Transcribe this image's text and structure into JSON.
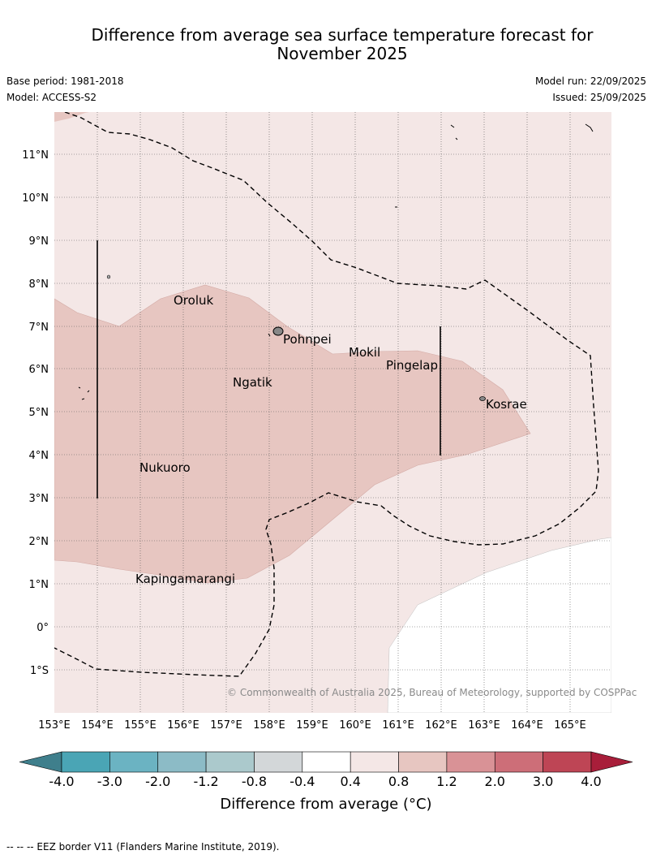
{
  "title_line1": "Difference from average sea surface temperature forecast for",
  "title_line2": "November 2025",
  "meta": {
    "base_period": "Base period: 1981-2018",
    "model": "Model: ACCESS-S2",
    "model_run": "Model run: 22/09/2025",
    "issued": "Issued: 25/09/2025"
  },
  "map": {
    "lon_labels": [
      "153°E",
      "154°E",
      "155°E",
      "156°E",
      "157°E",
      "158°E",
      "159°E",
      "160°E",
      "161°E",
      "162°E",
      "163°E",
      "164°E",
      "165°E"
    ],
    "lat_labels": [
      "11°N",
      "10°N",
      "9°N",
      "8°N",
      "7°N",
      "6°N",
      "5°N",
      "4°N",
      "3°N",
      "2°N",
      "1°N",
      "0°",
      "1°S"
    ],
    "places": [
      "Oroluk",
      "Pohnpei",
      "Mokil",
      "Pingelap",
      "Ngatik",
      "Kosrae",
      "Nukuoro",
      "Kapingamarangi"
    ],
    "copyright": "© Commonwealth of Australia 2025, Bureau of Meteorology, supported by COSPPac",
    "fill_classes": [
      "0.4 to 0.8",
      "0.8 to 1.2"
    ]
  },
  "colorbar": {
    "ticks": [
      "-4.0",
      "-3.0",
      "-2.0",
      "-1.2",
      "-0.8",
      "-0.4",
      "0.4",
      "0.8",
      "1.2",
      "2.0",
      "3.0",
      "4.0"
    ],
    "colors": [
      "#3f7f8c",
      "#4aa5b5",
      "#6bb3c2",
      "#8cbbc6",
      "#abc9cc",
      "#d3d7d9",
      "#ffffff",
      "#f4e7e6",
      "#e7c6c1",
      "#d99296",
      "#cd6e78",
      "#be4555",
      "#a81e3a"
    ],
    "label": "Difference from average (°C)"
  },
  "footer": "-- -- -- EEZ border V11 (Flanders Marine Institute, 2019)."
}
